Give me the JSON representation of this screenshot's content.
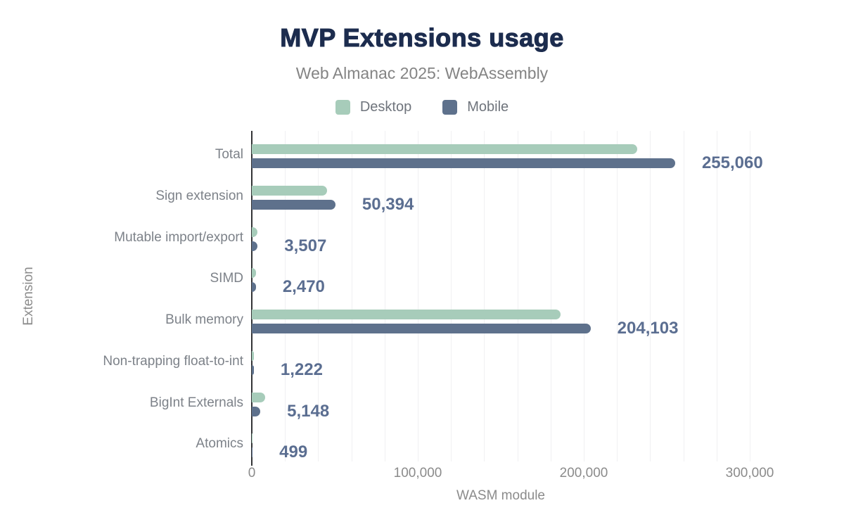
{
  "title": "MVP Extensions usage",
  "subtitle": "Web Almanac 2025: WebAssembly",
  "legend": {
    "desktop_label": "Desktop",
    "mobile_label": "Mobile"
  },
  "colors": {
    "desktop": "#a7ccba",
    "mobile": "#5e718c",
    "title": "#1c2c4e",
    "subtitle": "#848484",
    "value_label": "#5b6e91",
    "category_label": "#7d8289",
    "axis_text": "#8b8b8b",
    "axis_line": "#333436",
    "gridline": "#f0f0f2"
  },
  "chart_data": {
    "type": "bar",
    "orientation": "horizontal",
    "title": "MVP Extensions usage",
    "subtitle": "Web Almanac 2025: WebAssembly",
    "xlabel": "WASM module",
    "ylabel": "Extension",
    "categories": [
      "Total",
      "Sign extension",
      "Mutable import/export",
      "SIMD",
      "Bulk memory",
      "Non-trapping float-to-int",
      "BigInt Externals",
      "Atomics"
    ],
    "series": [
      {
        "name": "Desktop",
        "color": "#a7ccba",
        "estimated": true,
        "values": [
          232000,
          45500,
          3400,
          2500,
          186000,
          1300,
          8000,
          450
        ]
      },
      {
        "name": "Mobile",
        "color": "#5e718c",
        "estimated": false,
        "values": [
          255060,
          50394,
          3507,
          2470,
          204103,
          1222,
          5148,
          499
        ]
      }
    ],
    "value_labels": [
      "255,060",
      "50,394",
      "3,507",
      "2,470",
      "204,103",
      "1,222",
      "5,148",
      "499"
    ],
    "value_labels_series": "Mobile",
    "xlim": [
      0,
      300000
    ],
    "xticks": [
      0,
      100000,
      200000,
      300000
    ],
    "xtick_labels": [
      "0",
      "100,000",
      "200,000",
      "300,000"
    ],
    "grid_interval": 20000,
    "grid": true,
    "legend_position": "top-center"
  }
}
